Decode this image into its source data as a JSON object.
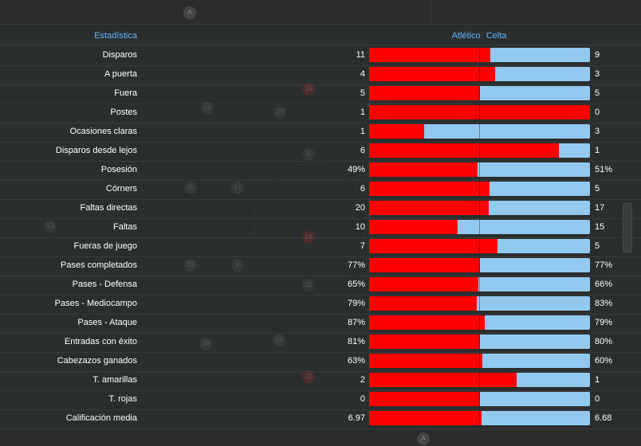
{
  "header": {
    "stat_label": "Estadística",
    "home_team": "Atlético",
    "away_team": "Celta"
  },
  "colors": {
    "home": "#ff0000",
    "away": "#93c9ef",
    "accent": "#63b3ff"
  },
  "stats": [
    {
      "label": "Disparos",
      "home": "11",
      "away": "9",
      "share": 0.55
    },
    {
      "label": "A puerta",
      "home": "4",
      "away": "3",
      "share": 0.57
    },
    {
      "label": "Fuera",
      "home": "5",
      "away": "5",
      "share": 0.5
    },
    {
      "label": "Postes",
      "home": "1",
      "away": "0",
      "share": 1.0
    },
    {
      "label": "Ocasiones claras",
      "home": "1",
      "away": "3",
      "share": 0.25
    },
    {
      "label": "Disparos desde lejos",
      "home": "6",
      "away": "1",
      "share": 0.86
    },
    {
      "label": "Posesión",
      "home": "49%",
      "away": "51%",
      "share": 0.49
    },
    {
      "label": "Córners",
      "home": "6",
      "away": "5",
      "share": 0.545
    },
    {
      "label": "Faltas directas",
      "home": "20",
      "away": "17",
      "share": 0.54
    },
    {
      "label": "Faltas",
      "home": "10",
      "away": "15",
      "share": 0.4
    },
    {
      "label": "Fueras de juego",
      "home": "7",
      "away": "5",
      "share": 0.58
    },
    {
      "label": "Pases completados",
      "home": "77%",
      "away": "77%",
      "share": 0.5
    },
    {
      "label": "Pases - Defensa",
      "home": "65%",
      "away": "66%",
      "share": 0.496
    },
    {
      "label": "Pases - Mediocampo",
      "home": "79%",
      "away": "83%",
      "share": 0.488
    },
    {
      "label": "Pases - Ataque",
      "home": "87%",
      "away": "79%",
      "share": 0.524
    },
    {
      "label": "Entradas con éxito",
      "home": "81%",
      "away": "80%",
      "share": 0.503
    },
    {
      "label": "Cabezazos ganados",
      "home": "63%",
      "away": "60%",
      "share": 0.512
    },
    {
      "label": "T. amarillas",
      "home": "2",
      "away": "1",
      "share": 0.667
    },
    {
      "label": "T. rojas",
      "home": "0",
      "away": "0",
      "share": 0.5
    },
    {
      "label": "Calificación media",
      "home": "6.97",
      "away": "6.68",
      "share": 0.51
    }
  ]
}
